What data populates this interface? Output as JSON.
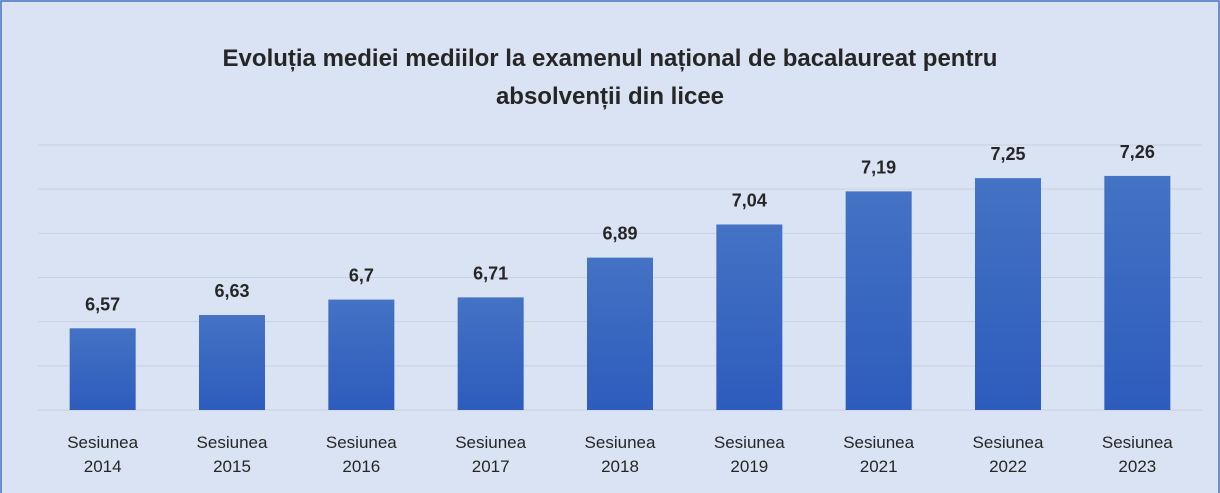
{
  "chart_data": {
    "type": "bar",
    "title": "Evoluția mediei mediilor la examenul național de bacalaureat pentru absolvenții din licee",
    "categories": [
      "Sesiunea 2014",
      "Sesiunea 2015",
      "Sesiunea 2016",
      "Sesiunea 2017",
      "Sesiunea 2018",
      "Sesiunea 2019",
      "Sesiunea 2021",
      "Sesiunea 2022",
      "Sesiunea 2023"
    ],
    "values": [
      6.57,
      6.63,
      6.7,
      6.71,
      6.89,
      7.04,
      7.19,
      7.25,
      7.26
    ],
    "value_labels": [
      "6,57",
      "6,63",
      "6,7",
      "6,71",
      "6,89",
      "7,04",
      "7,19",
      "7,25",
      "7,26"
    ],
    "color": "#4472c4",
    "ylim": [
      6.2,
      7.4
    ],
    "yticks": [
      6.2,
      6.4,
      6.6,
      6.8,
      7.0,
      7.2,
      7.4
    ],
    "grid": true
  }
}
